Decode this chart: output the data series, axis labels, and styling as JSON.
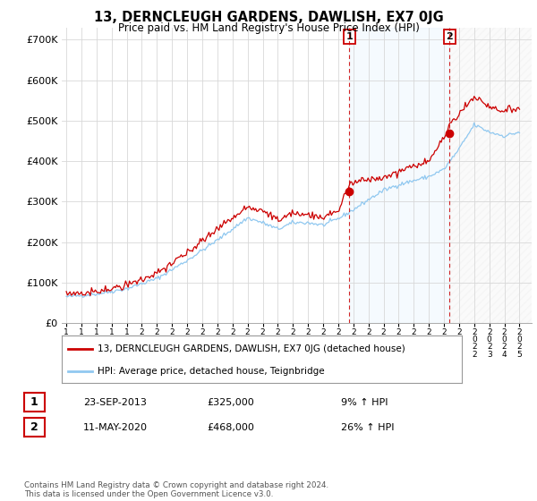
{
  "title": "13, DERNCLEUGH GARDENS, DAWLISH, EX7 0JG",
  "subtitle": "Price paid vs. HM Land Registry's House Price Index (HPI)",
  "ylabel_ticks": [
    "£0",
    "£100K",
    "£200K",
    "£300K",
    "£400K",
    "£500K",
    "£600K",
    "£700K"
  ],
  "ytick_vals": [
    0,
    100000,
    200000,
    300000,
    400000,
    500000,
    600000,
    700000
  ],
  "ylim": [
    0,
    730000
  ],
  "xlim_start": 1994.7,
  "xlim_end": 2025.8,
  "background_color": "#ffffff",
  "plot_bg_color": "#ffffff",
  "grid_color": "#d8d8d8",
  "line1_color": "#cc0000",
  "line2_color": "#90c8f0",
  "sale1_date": 2013.73,
  "sale1_price": 325000,
  "sale2_date": 2020.37,
  "sale2_price": 468000,
  "legend_line1": "13, DERNCLEUGH GARDENS, DAWLISH, EX7 0JG (detached house)",
  "legend_line2": "HPI: Average price, detached house, Teignbridge",
  "annotation1_label": "1",
  "annotation1_date": "23-SEP-2013",
  "annotation1_price": "£325,000",
  "annotation1_hpi": "9% ↑ HPI",
  "annotation2_label": "2",
  "annotation2_date": "11-MAY-2020",
  "annotation2_price": "£468,000",
  "annotation2_hpi": "26% ↑ HPI",
  "footer": "Contains HM Land Registry data © Crown copyright and database right 2024.\nThis data is licensed under the Open Government Licence v3.0.",
  "hpi_anchors_x": [
    1995,
    1997,
    1999,
    2001,
    2003,
    2005,
    2007,
    2008,
    2009,
    2010,
    2011,
    2012,
    2013,
    2014,
    2015,
    2016,
    2017,
    2018,
    2019,
    2020,
    2021,
    2022,
    2023,
    2024,
    2025
  ],
  "hpi_anchors_y": [
    65000,
    72000,
    85000,
    110000,
    155000,
    205000,
    260000,
    248000,
    232000,
    248000,
    248000,
    242000,
    258000,
    280000,
    305000,
    328000,
    342000,
    352000,
    362000,
    380000,
    430000,
    490000,
    472000,
    462000,
    472000
  ],
  "ratio_anchors_x": [
    1995,
    2000,
    2005,
    2008,
    2010,
    2013,
    2013.73,
    2016,
    2019,
    2020.37,
    2022,
    2025
  ],
  "ratio_anchors_y": [
    1.09,
    1.11,
    1.13,
    1.11,
    1.09,
    1.07,
    1.259,
    1.09,
    1.11,
    1.232,
    1.14,
    1.13
  ],
  "hpi_noise_seed": 42,
  "hpi_noise_std": 2500,
  "price_noise_seed": 7,
  "price_noise_std": 3500,
  "npoints": 360
}
